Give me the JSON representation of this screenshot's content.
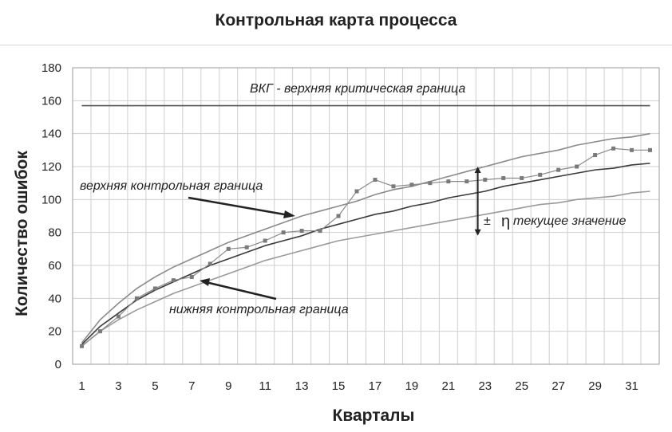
{
  "chart_data": {
    "type": "line",
    "title": "Контрольная карта процесса",
    "xlabel": "Кварталы",
    "ylabel": "Количество ошибок",
    "xlim": [
      1,
      32
    ],
    "ylim": [
      0,
      180
    ],
    "x_ticks": [
      1,
      3,
      5,
      7,
      9,
      11,
      13,
      15,
      17,
      19,
      21,
      23,
      25,
      27,
      29,
      31
    ],
    "y_ticks": [
      0,
      20,
      40,
      60,
      80,
      100,
      120,
      140,
      160,
      180
    ],
    "grid": true,
    "series": [
      {
        "name": "ВКГ - верхняя критическая граница",
        "color": "#555555",
        "x": [
          1,
          32
        ],
        "values": [
          157,
          157
        ]
      },
      {
        "name": "верхняя контрольная граница",
        "color": "#8a8a8a",
        "x": [
          1,
          2,
          3,
          4,
          5,
          6,
          7,
          8,
          9,
          10,
          11,
          12,
          13,
          14,
          15,
          16,
          17,
          18,
          19,
          20,
          21,
          22,
          23,
          24,
          25,
          26,
          27,
          28,
          29,
          30,
          31,
          32
        ],
        "values": [
          13,
          27,
          37,
          46,
          53,
          59,
          64,
          69,
          74,
          78,
          82,
          86,
          90,
          93,
          96,
          99,
          103,
          106,
          108,
          111,
          114,
          117,
          120,
          123,
          126,
          128,
          130,
          133,
          135,
          137,
          138,
          140
        ]
      },
      {
        "name": "",
        "color": "#3a3a3a",
        "x": [
          1,
          2,
          3,
          4,
          5,
          6,
          7,
          8,
          9,
          10,
          11,
          12,
          13,
          14,
          15,
          16,
          17,
          18,
          19,
          20,
          21,
          22,
          23,
          24,
          25,
          26,
          27,
          28,
          29,
          30,
          31,
          32
        ],
        "values": [
          12,
          23,
          31,
          39,
          45,
          50,
          55,
          60,
          64,
          68,
          72,
          75,
          78,
          82,
          85,
          88,
          91,
          93,
          96,
          98,
          101,
          103,
          105,
          108,
          110,
          112,
          114,
          116,
          118,
          119,
          121,
          122
        ]
      },
      {
        "name": "нижняя контрольная граница",
        "color": "#9a9a9a",
        "x": [
          1,
          2,
          3,
          4,
          5,
          6,
          7,
          8,
          9,
          10,
          11,
          12,
          13,
          14,
          15,
          16,
          17,
          18,
          19,
          20,
          21,
          22,
          23,
          24,
          25,
          26,
          27,
          28,
          29,
          30,
          31,
          32
        ],
        "values": [
          11,
          20,
          27,
          33,
          38,
          43,
          47,
          51,
          55,
          59,
          63,
          66,
          69,
          72,
          75,
          77,
          79,
          81,
          83,
          85,
          87,
          89,
          91,
          93,
          95,
          97,
          98,
          100,
          101,
          102,
          104,
          105
        ]
      },
      {
        "name": "",
        "color": "#8a8a8a",
        "markers": true,
        "x": [
          1,
          2,
          3,
          4,
          5,
          6,
          7,
          8,
          9,
          10,
          11,
          12,
          13,
          14,
          15,
          16,
          17,
          18,
          19,
          20,
          21,
          22,
          23,
          24,
          25,
          26,
          27,
          28,
          29,
          30,
          31,
          32
        ],
        "values": [
          11,
          20,
          29,
          40,
          46,
          51,
          53,
          61,
          70,
          71,
          75,
          80,
          81,
          81,
          90,
          105,
          112,
          108,
          109,
          110,
          111,
          111,
          112,
          113,
          113,
          115,
          118,
          120,
          127,
          131,
          130,
          130
        ]
      }
    ],
    "annotations": {
      "vkg_label": "ВКГ - верхняя критическая граница",
      "upper_label": "верхняя контрольная граница",
      "lower_label": "нижняя контрольная граница",
      "pm_symbol": "±",
      "eta_symbol": "η",
      "current_value_label": "текущее значение",
      "range_marker": {
        "x": 22.6,
        "y_from": 78,
        "y_to": 120
      }
    }
  }
}
